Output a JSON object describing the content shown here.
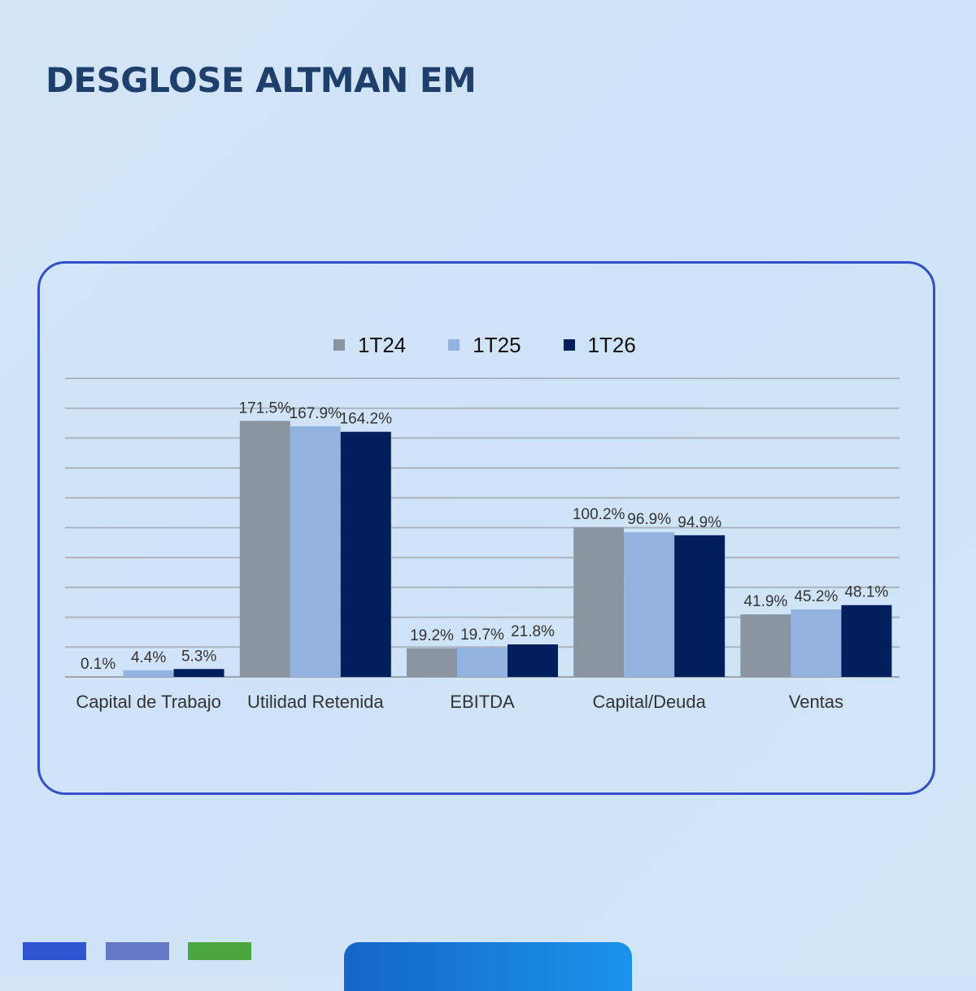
{
  "title": "DESGLOSE ALTMAN EM",
  "colors": {
    "title": "#1f3f6b",
    "card_border": "#3350c4",
    "gridline": "#aab4c0",
    "axis": "#9aa5b1",
    "deco_bars": [
      "#2f55d0",
      "#6677c8",
      "#4aa640"
    ],
    "bottom_tab": [
      "#1565c8",
      "#1a93ec"
    ]
  },
  "chart_data": {
    "type": "bar",
    "title": "",
    "xlabel": "",
    "ylabel": "",
    "ylim": [
      0,
      200
    ],
    "grid": true,
    "legend_position": "top-center",
    "categories": [
      "Capital de Trabajo",
      "Utilidad Retenida",
      "EBITDA",
      "Capital/Deuda",
      "Ventas"
    ],
    "series": [
      {
        "name": "1T24",
        "color": "#8995a1",
        "values": [
          0.1,
          171.5,
          19.2,
          100.2,
          41.9
        ],
        "labels": [
          "0.1%",
          "171.5%",
          "19.2%",
          "100.2%",
          "41.9%"
        ]
      },
      {
        "name": "1T25",
        "color": "#92b2e0",
        "values": [
          4.4,
          167.9,
          19.7,
          96.9,
          45.2
        ],
        "labels": [
          "4.4%",
          "167.9%",
          "19.7%",
          "96.9%",
          "45.2%"
        ]
      },
      {
        "name": "1T26",
        "color": "#021f5d",
        "values": [
          5.3,
          164.2,
          21.8,
          94.9,
          48.1
        ],
        "labels": [
          "5.3%",
          "164.2%",
          "21.8%",
          "94.9%",
          "48.1%"
        ]
      }
    ]
  }
}
